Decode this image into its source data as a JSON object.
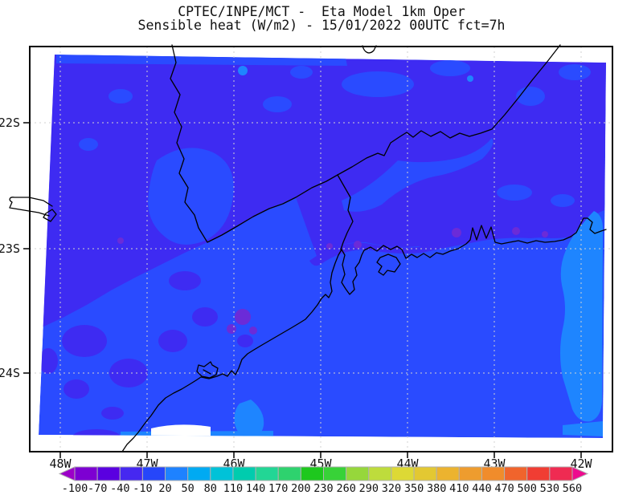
{
  "header": {
    "title_line1": "CPTEC/INPE/MCT -  Eta Model 1km Oper",
    "title_line2": "Sensible heat (W/m2) - 15/01/2022 00UTC fct=7h"
  },
  "map": {
    "lat_labels": [
      "22S",
      "23S",
      "24S"
    ],
    "lon_labels": [
      "48W",
      "47W",
      "46W",
      "45W",
      "44W",
      "43W",
      "42W"
    ],
    "fill_colors": {
      "base": "#2a4bff",
      "violet": "#3e2bf2",
      "purple": "#6b2bd8",
      "azure": "#1e85ff",
      "grid": "#d2d2d2",
      "line": "#000000"
    }
  },
  "colorbar": {
    "tick_labels": [
      "-100",
      "-70",
      "-40",
      "-10",
      "20",
      "50",
      "80",
      "110",
      "140",
      "170",
      "200",
      "230",
      "260",
      "290",
      "320",
      "350",
      "380",
      "410",
      "440",
      "470",
      "500",
      "530",
      "560"
    ],
    "segment_colors": [
      "#7d00d2",
      "#5a00e0",
      "#4628f0",
      "#2646fa",
      "#1e82ff",
      "#00aaf2",
      "#00c2d8",
      "#00ccae",
      "#22d695",
      "#2ed26e",
      "#1ec81e",
      "#38d238",
      "#96d73b",
      "#bedc3c",
      "#ddd935",
      "#e3c832",
      "#ecb32f",
      "#ee9c2e",
      "#f08c2b",
      "#f0642c",
      "#f03d33",
      "#ef2b52"
    ],
    "arrow_left_color": "#9c00c8",
    "arrow_right_color": "#ee0b8e"
  },
  "chart_data": {
    "type": "heatmap",
    "title": "CPTEC/INPE/MCT -  Eta Model 1km Oper",
    "subtitle": "Sensible heat (W/m2) - 15/01/2022 00UTC fct=7h",
    "units": "W/m2",
    "model": "Eta Model 1km Oper",
    "valid": "15/01/2022 00UTC fct=7h",
    "x_ticks": [
      "48W",
      "47W",
      "46W",
      "45W",
      "44W",
      "43W",
      "42W"
    ],
    "y_ticks": [
      "22S",
      "23S",
      "24S"
    ],
    "x_range": [
      "48W",
      "42W"
    ],
    "y_range": [
      "22S",
      "24S"
    ],
    "grid": true,
    "legend_position": "bottom",
    "colorbar_levels": [
      -100,
      -70,
      -40,
      -10,
      20,
      50,
      80,
      110,
      140,
      170,
      200,
      230,
      260,
      290,
      320,
      350,
      380,
      410,
      440,
      470,
      500,
      530,
      560
    ],
    "colorbar_colors": [
      "#7d00d2",
      "#5a00e0",
      "#4628f0",
      "#2646fa",
      "#1e82ff",
      "#00aaf2",
      "#00c2d8",
      "#00ccae",
      "#22d695",
      "#2ed26e",
      "#1ec81e",
      "#38d238",
      "#96d73b",
      "#bedc3c",
      "#ddd935",
      "#e3c832",
      "#ecb32f",
      "#ee9c2e",
      "#f08c2b",
      "#f0642c",
      "#f03d33",
      "#ef2b52"
    ],
    "field_summary": [
      {
        "region": "northern / northeastern interior land",
        "value_range_wm2": "-40 to -10",
        "color": "#3e2bf2"
      },
      {
        "region": "southwestern interior land and open Atlantic ocean",
        "value_range_wm2": "-10 to 20",
        "color": "#2a4bff"
      },
      {
        "region": "coastal ocean patches and strip near 42W",
        "value_range_wm2": "20 to 50",
        "color": "#1e85ff"
      },
      {
        "region": "small scattered spots along coastal mountains",
        "value_range_wm2": "-70 to -40",
        "color": "#6b2bd8"
      }
    ],
    "overlays": [
      "coastline",
      "state borders",
      "lat-lon dotted grid"
    ]
  }
}
